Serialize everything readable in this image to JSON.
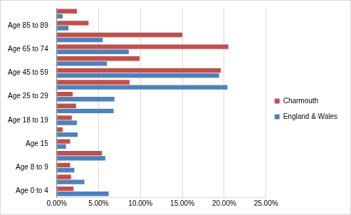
{
  "chart_data": {
    "type": "bar",
    "orientation": "horizontal",
    "categories": [
      "Age 0 to 4",
      null,
      "Age 8 to 9",
      null,
      "Age 15",
      null,
      "Age 18 to 19",
      null,
      "Age 25 to 29",
      null,
      "Age 45 to 59",
      null,
      "Age 65 to 74",
      null,
      "Age 85 to 89",
      null
    ],
    "series": [
      {
        "name": "Charmouth",
        "color": "#c0504d",
        "values": [
          2.0,
          1.7,
          1.6,
          5.4,
          1.6,
          0.7,
          1.8,
          2.3,
          1.9,
          8.7,
          19.6,
          9.9,
          20.5,
          15.0,
          3.8,
          2.4
        ]
      },
      {
        "name": "England & Wales",
        "color": "#4f81bd",
        "values": [
          6.2,
          3.3,
          2.1,
          5.8,
          1.1,
          2.5,
          2.4,
          6.8,
          6.9,
          20.4,
          19.4,
          6.0,
          8.6,
          5.5,
          1.4,
          0.7
        ]
      }
    ],
    "xlim": [
      0,
      25
    ],
    "xticks": [
      {
        "value": 0,
        "label": "0.00%"
      },
      {
        "value": 5,
        "label": "5.00%"
      },
      {
        "value": 10,
        "label": "10.00%"
      },
      {
        "value": 15,
        "label": "15.00%"
      },
      {
        "value": 20,
        "label": "20.00%"
      },
      {
        "value": 25,
        "label": "25.00%"
      }
    ],
    "grid": true,
    "legend": "right"
  }
}
